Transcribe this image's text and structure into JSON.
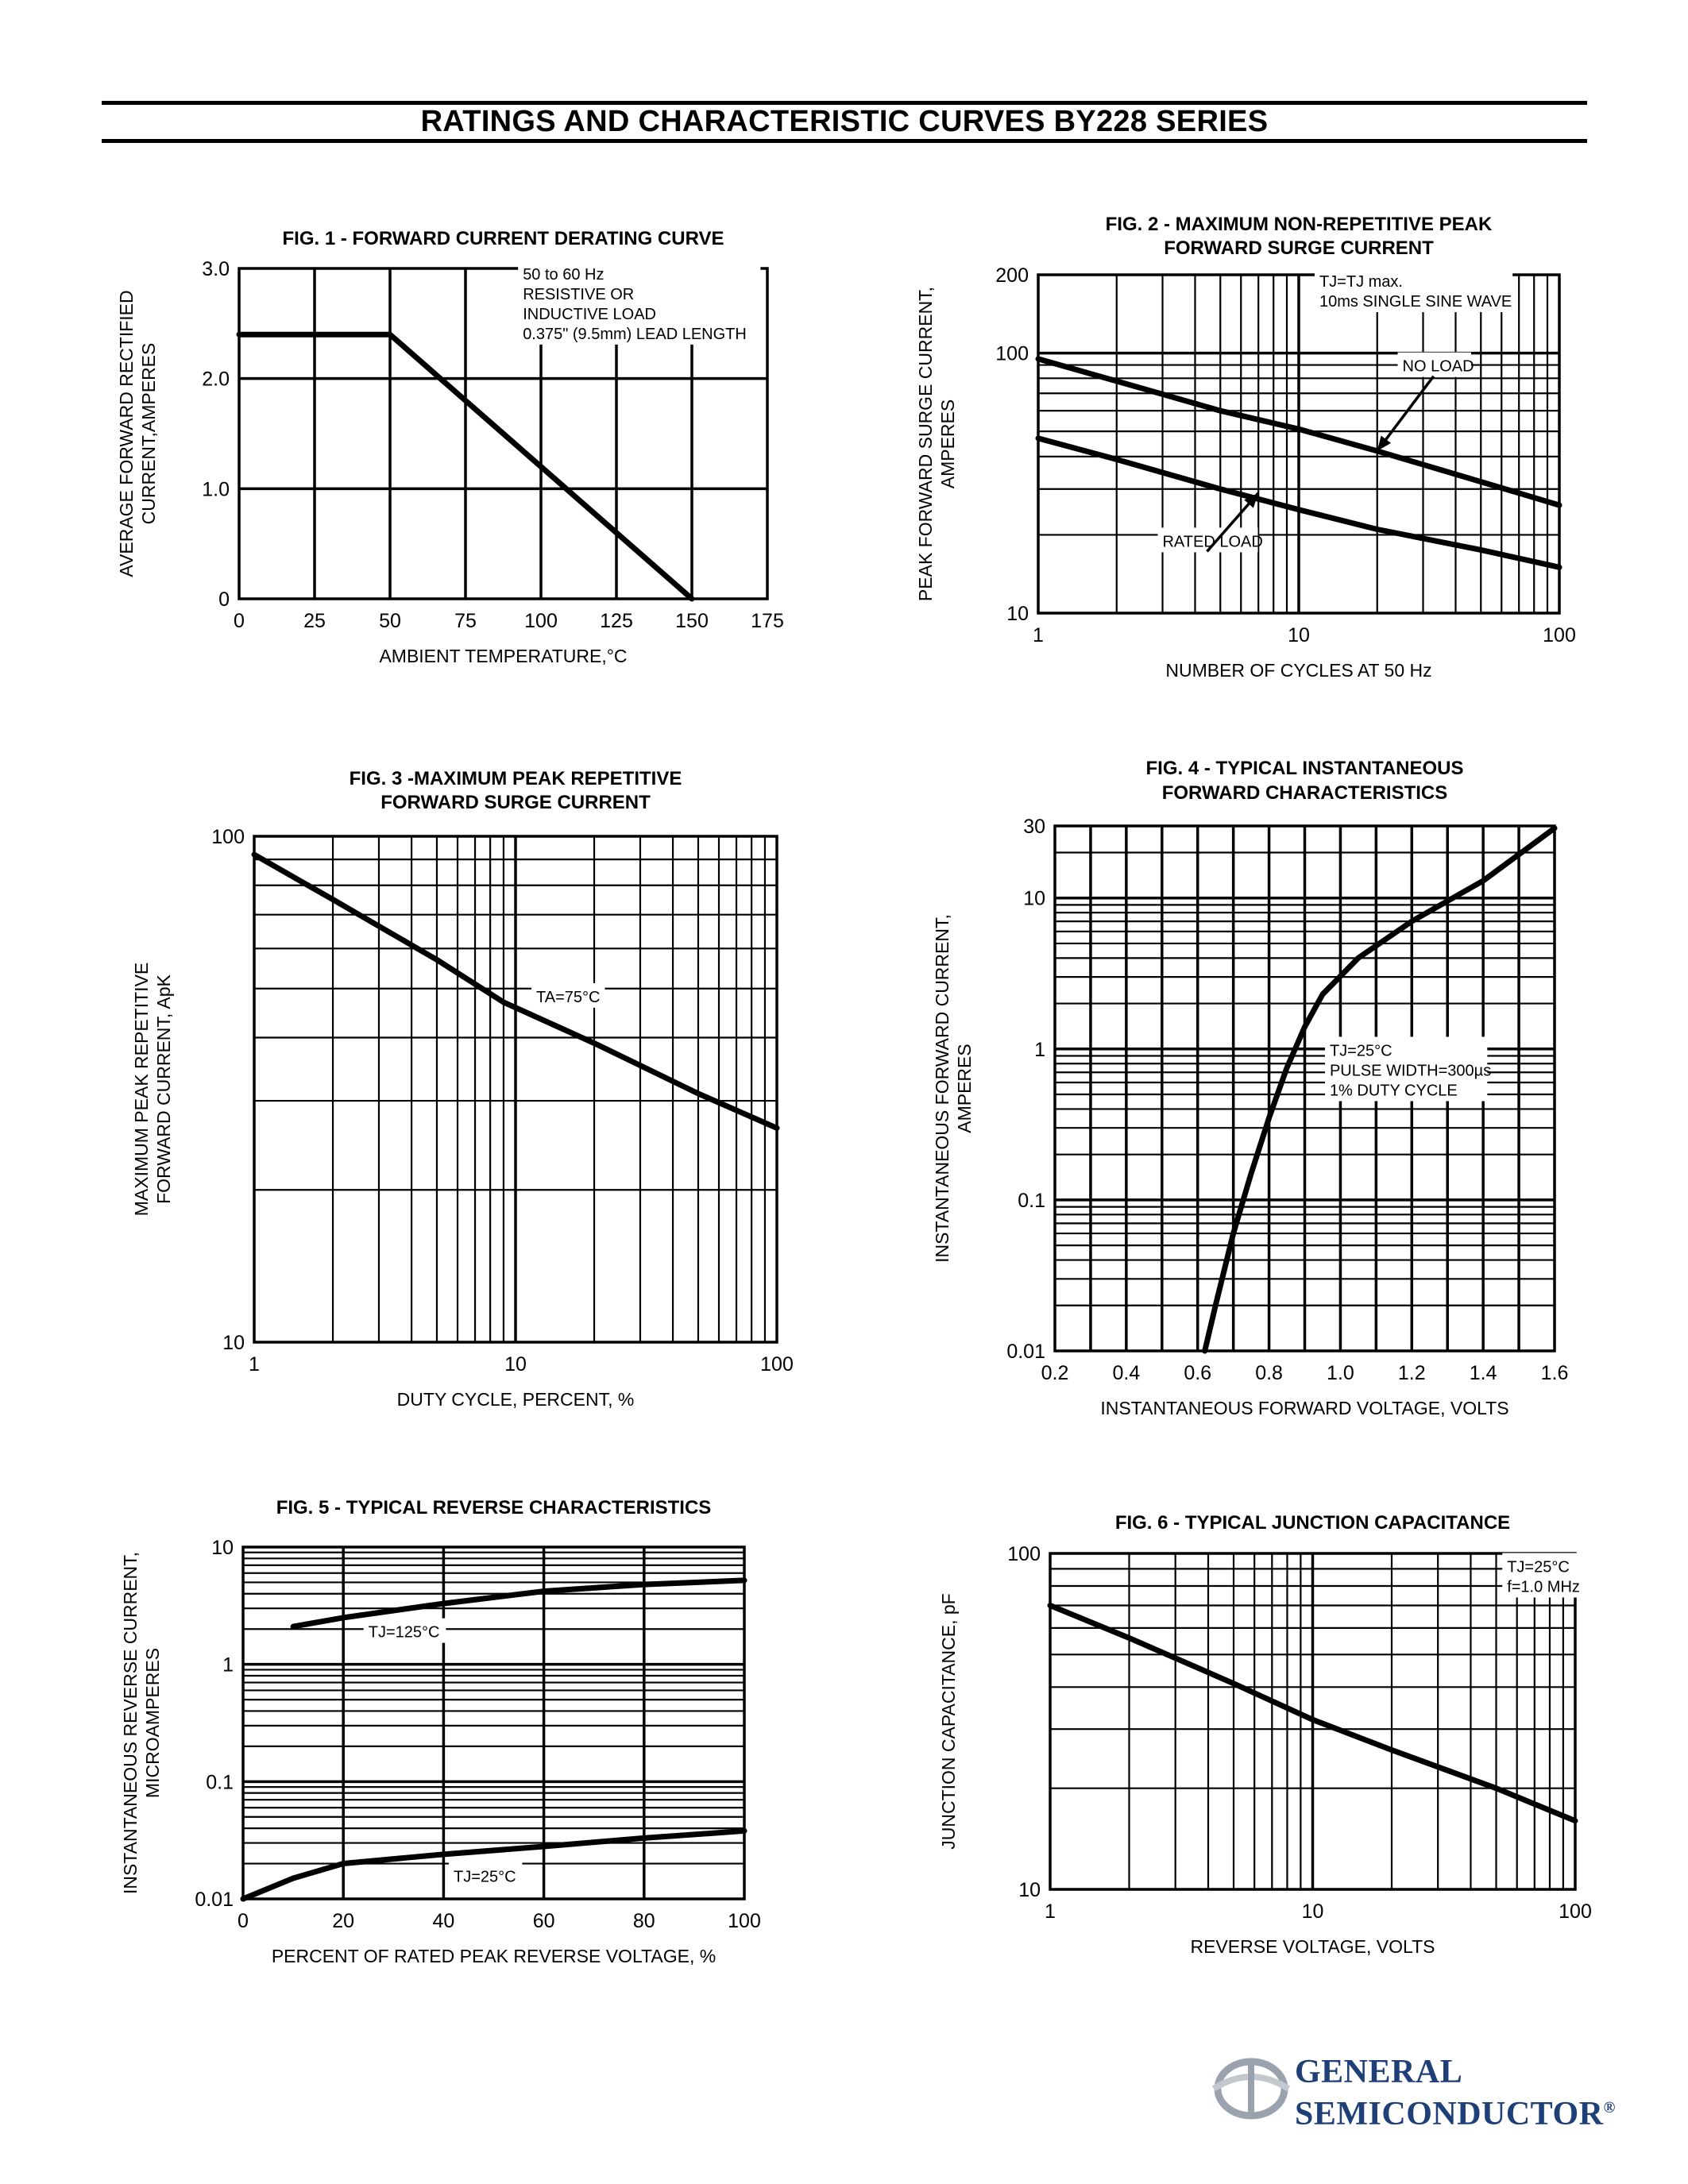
{
  "header": {
    "title": "RATINGS AND CHARACTERISTIC CURVES BY228 SERIES"
  },
  "logo": {
    "line1": "GENERAL",
    "line2": "SEMICONDUCTOR",
    "mark": "®",
    "color": "#1e3f78"
  },
  "chart_data": [
    {
      "type": "line",
      "title": "FIG. 1 - FORWARD CURRENT DERATING CURVE",
      "xlabel": "AMBIENT TEMPERATURE,°C",
      "ylabel": [
        "AVERAGE FORWARD RECTIFIED",
        "CURRENT,AMPERES"
      ],
      "xlim": [
        0,
        175
      ],
      "ylim": [
        0,
        3.0
      ],
      "xscale": "linear",
      "yscale": "linear",
      "xticks": [
        0,
        25,
        50,
        75,
        100,
        125,
        150,
        175
      ],
      "xtick_labels": [
        "0",
        "25",
        "50",
        "75",
        "100",
        "125",
        "150",
        "175"
      ],
      "yticks": [
        0,
        1.0,
        2.0,
        3.0
      ],
      "ytick_labels": [
        "0",
        "1.0",
        "2.0",
        "3.0"
      ],
      "grid": true,
      "series": [
        {
          "x": [
            0,
            50,
            150
          ],
          "y": [
            2.4,
            2.4,
            0
          ]
        }
      ],
      "annotations": [
        {
          "lines": [
            "50 to 60 Hz",
            "RESISTIVE OR",
            "INDUCTIVE LOAD",
            "0.375\" (9.5mm) LEAD LENGTH"
          ],
          "x": 94,
          "y": 2.9
        }
      ]
    },
    {
      "type": "line",
      "title": [
        "FIG. 2 - MAXIMUM NON-REPETITIVE PEAK",
        "FORWARD SURGE CURRENT"
      ],
      "xlabel": "NUMBER OF CYCLES AT 50 Hz",
      "ylabel": [
        "PEAK FORWARD SURGE CURRENT,",
        "AMPERES"
      ],
      "xlim": [
        1,
        100
      ],
      "ylim": [
        10,
        200
      ],
      "xscale": "log",
      "yscale": "log",
      "xticks": [
        1,
        10,
        100
      ],
      "xtick_labels": [
        "1",
        "10",
        "100"
      ],
      "yticks": [
        10,
        100,
        200
      ],
      "ytick_labels": [
        "10",
        "100",
        "200"
      ],
      "grid": true,
      "series": [
        {
          "name": "NO LOAD",
          "x": [
            1,
            2,
            5,
            10,
            20,
            50,
            100
          ],
          "y": [
            95,
            78,
            60,
            51,
            42,
            32,
            26
          ]
        },
        {
          "name": "RATED LOAD",
          "x": [
            1,
            2,
            5,
            10,
            20,
            50,
            100
          ],
          "y": [
            47,
            39,
            30,
            25,
            21,
            17.5,
            15
          ]
        }
      ],
      "annotations": [
        {
          "lines": [
            "TJ=TJ max.",
            "10ms SINGLE SINE WAVE"
          ],
          "x": 12,
          "y": 180
        },
        {
          "lines": [
            "NO LOAD"
          ],
          "x": 25,
          "y": 85,
          "arrow_to": [
            20,
            42
          ]
        },
        {
          "lines": [
            "RATED LOAD"
          ],
          "x": 3,
          "y": 18,
          "arrow_to": [
            7,
            29
          ]
        }
      ]
    },
    {
      "type": "line",
      "title": [
        "FIG. 3 -MAXIMUM PEAK REPETITIVE",
        "FORWARD SURGE CURRENT"
      ],
      "xlabel": "DUTY CYCLE, PERCENT, %",
      "ylabel": [
        "MAXIMUM PEAK REPETITIVE",
        "FORWARD CURRENT, ApK"
      ],
      "xlim": [
        1,
        100
      ],
      "ylim": [
        10,
        100
      ],
      "xscale": "log",
      "yscale": "log",
      "xticks": [
        1,
        10,
        100
      ],
      "xtick_labels": [
        "1",
        "10",
        "100"
      ],
      "yticks": [
        10,
        100
      ],
      "ytick_labels": [
        "10",
        "100"
      ],
      "grid": true,
      "series": [
        {
          "x": [
            1,
            2,
            5,
            9,
            20,
            50,
            100
          ],
          "y": [
            92,
            75,
            57,
            47,
            39,
            31,
            26.5
          ]
        }
      ],
      "annotations": [
        {
          "lines": [
            "TA=75°C"
          ],
          "x": 12,
          "y": 47
        }
      ]
    },
    {
      "type": "line",
      "title": [
        "FIG. 4 - TYPICAL INSTANTANEOUS",
        "FORWARD CHARACTERISTICS"
      ],
      "xlabel": "INSTANTANEOUS FORWARD VOLTAGE, VOLTS",
      "ylabel": [
        "INSTANTANEOUS FORWARD CURRENT,",
        "AMPERES"
      ],
      "xlim": [
        0.2,
        1.6
      ],
      "ylim": [
        0.01,
        30
      ],
      "xscale": "linear",
      "yscale": "log",
      "xticks": [
        0.2,
        0.4,
        0.6,
        0.8,
        1.0,
        1.2,
        1.4,
        1.6
      ],
      "xtick_labels": [
        "0.2",
        "0.4",
        "0.6",
        "0.8",
        "1.0",
        "1.2",
        "1.4",
        "1.6"
      ],
      "yticks": [
        0.01,
        0.1,
        1,
        10,
        30
      ],
      "ytick_labels": [
        "0.01",
        "0.1",
        "1",
        "10",
        "30"
      ],
      "grid": true,
      "series": [
        {
          "x": [
            0.62,
            0.65,
            0.7,
            0.75,
            0.8,
            0.85,
            0.9,
            0.95,
            1.05,
            1.2,
            1.4,
            1.6
          ],
          "y": [
            0.01,
            0.02,
            0.06,
            0.15,
            0.35,
            0.75,
            1.4,
            2.3,
            4,
            7,
            13,
            29
          ]
        }
      ],
      "annotations": [
        {
          "lines": [
            "TJ=25°C",
            "PULSE WIDTH=300µs",
            "1% DUTY CYCLE"
          ],
          "x": 0.97,
          "y": 0.9
        }
      ]
    },
    {
      "type": "line",
      "title": "FIG. 5 - TYPICAL REVERSE CHARACTERISTICS",
      "xlabel": "PERCENT OF RATED PEAK REVERSE VOLTAGE, %",
      "ylabel": [
        "INSTANTANEOUS REVERSE CURRENT,",
        "MICROAMPERES"
      ],
      "xlim": [
        0,
        100
      ],
      "ylim": [
        0.01,
        10
      ],
      "xscale": "linear",
      "yscale": "log",
      "xticks": [
        0,
        20,
        40,
        60,
        80,
        100
      ],
      "xtick_labels": [
        "0",
        "20",
        "40",
        "60",
        "80",
        "100"
      ],
      "yticks": [
        0.01,
        0.1,
        1,
        10
      ],
      "ytick_labels": [
        "0.01",
        "0.1",
        "1",
        "10"
      ],
      "grid": true,
      "series": [
        {
          "name": "TJ=125°C",
          "x": [
            10,
            20,
            40,
            60,
            80,
            100
          ],
          "y": [
            2.1,
            2.5,
            3.3,
            4.2,
            4.8,
            5.2
          ]
        },
        {
          "name": "TJ=25°C",
          "x": [
            0,
            10,
            20,
            40,
            60,
            80,
            100
          ],
          "y": [
            0.01,
            0.015,
            0.02,
            0.024,
            0.028,
            0.033,
            0.038
          ]
        }
      ],
      "annotations": [
        {
          "lines": [
            "TJ=125°C"
          ],
          "x": 25,
          "y": 1.7
        },
        {
          "lines": [
            "TJ=25°C"
          ],
          "x": 42,
          "y": 0.014
        }
      ]
    },
    {
      "type": "line",
      "title": "FIG. 6 - TYPICAL JUNCTION CAPACITANCE",
      "xlabel": "REVERSE VOLTAGE, VOLTS",
      "ylabel": [
        "JUNCTION CAPACITANCE, pF"
      ],
      "xlim": [
        1,
        100
      ],
      "ylim": [
        10,
        100
      ],
      "xscale": "log",
      "yscale": "log",
      "xticks": [
        1,
        10,
        100
      ],
      "xtick_labels": [
        "1",
        "10",
        "100"
      ],
      "yticks": [
        10,
        100
      ],
      "ytick_labels": [
        "10",
        "100"
      ],
      "grid": true,
      "series": [
        {
          "x": [
            1,
            2,
            5,
            10,
            20,
            50,
            100
          ],
          "y": [
            70,
            56,
            41,
            32,
            26,
            20,
            16
          ]
        }
      ],
      "annotations": [
        {
          "lines": [
            "TJ=25°C",
            "f=1.0 MHz"
          ],
          "x": 55,
          "y": 88
        }
      ]
    }
  ]
}
